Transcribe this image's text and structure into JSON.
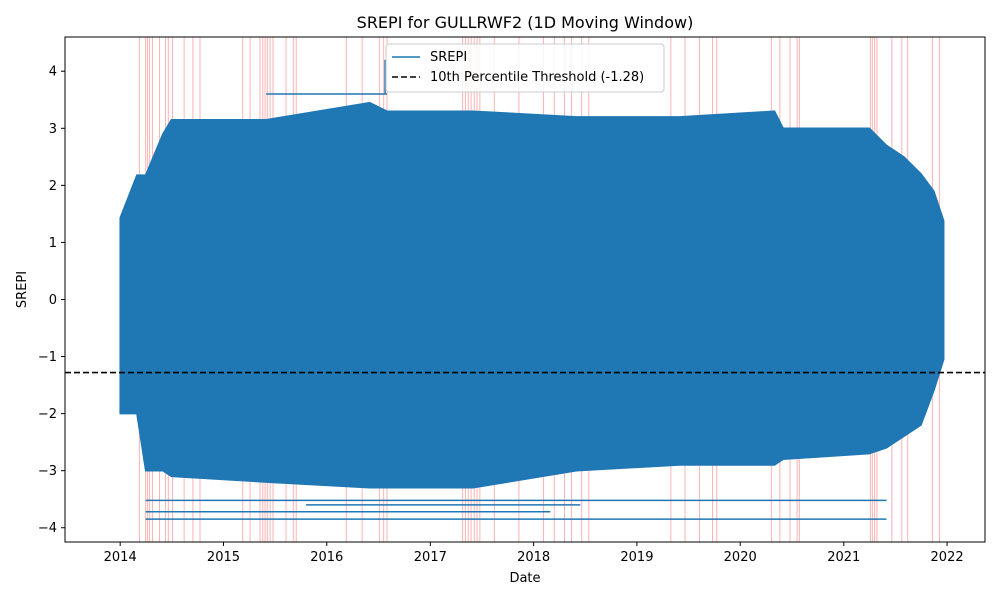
{
  "chart_data": {
    "type": "line",
    "title": "SREPI for GULLRWF2 (1D Moving Window)",
    "xlabel": "Date",
    "ylabel": "SREPI",
    "xlim": [
      "2013-06-20",
      "2022-05-15"
    ],
    "ylim": [
      -4.25,
      4.6
    ],
    "x_ticks": [
      "2014",
      "2015",
      "2016",
      "2017",
      "2018",
      "2019",
      "2020",
      "2021",
      "2022"
    ],
    "y_ticks": [
      -4,
      -3,
      -2,
      -1,
      0,
      1,
      2,
      3,
      4
    ],
    "y_tick_labels": [
      "−4",
      "−3",
      "−2",
      "−1",
      "0",
      "1",
      "2",
      "3",
      "4"
    ],
    "threshold": {
      "value": -1.28,
      "label": "10th Percentile Threshold (-1.28)",
      "color": "#000000",
      "style": "dashed"
    },
    "series": [
      {
        "name": "SREPI",
        "color": "#1f77b4",
        "envelope": [
          {
            "x": "2014-01-01",
            "min": -2.0,
            "max": 1.43
          },
          {
            "x": "2014-03-01",
            "min": -2.0,
            "max": 2.18
          },
          {
            "x": "2014-04-01",
            "min": -3.0,
            "max": 2.18
          },
          {
            "x": "2014-06-01",
            "min": -3.0,
            "max": 2.9
          },
          {
            "x": "2014-07-01",
            "min": -3.1,
            "max": 3.15
          },
          {
            "x": "2015-06-01",
            "min": -3.2,
            "max": 3.15
          },
          {
            "x": "2016-06-01",
            "min": -3.3,
            "max": 3.45
          },
          {
            "x": "2016-08-01",
            "min": -3.3,
            "max": 3.3
          },
          {
            "x": "2017-06-01",
            "min": -3.3,
            "max": 3.3
          },
          {
            "x": "2018-06-01",
            "min": -3.0,
            "max": 3.2
          },
          {
            "x": "2019-06-01",
            "min": -2.9,
            "max": 3.2
          },
          {
            "x": "2020-05-01",
            "min": -2.9,
            "max": 3.3
          },
          {
            "x": "2020-06-01",
            "min": -2.8,
            "max": 3.0
          },
          {
            "x": "2021-04-01",
            "min": -2.7,
            "max": 3.0
          },
          {
            "x": "2021-06-01",
            "min": -2.6,
            "max": 2.7
          },
          {
            "x": "2021-08-01",
            "min": -2.4,
            "max": 2.5
          },
          {
            "x": "2021-10-01",
            "min": -2.2,
            "max": 2.2
          },
          {
            "x": "2021-11-15",
            "min": -1.6,
            "max": 1.9
          },
          {
            "x": "2021-12-20",
            "min": -1.05,
            "max": 1.38
          }
        ],
        "extremes": [
          {
            "x1": "2014-04-01",
            "x2": "2021-06-01",
            "y": -3.85
          },
          {
            "x1": "2014-04-01",
            "x2": "2021-06-01",
            "y": -3.52
          },
          {
            "x1": "2014-04-01",
            "x2": "2018-03-01",
            "y": -3.72
          },
          {
            "x1": "2015-10-20",
            "x2": "2018-06-15",
            "y": -3.6
          },
          {
            "x1": "2015-06-01",
            "x2": "2016-08-01",
            "y": 3.6
          },
          {
            "x1": "2016-07-25",
            "x2": "2016-07-25",
            "y": 4.2
          }
        ]
      }
    ],
    "drought_marks": [
      "2014-03-10",
      "2014-04-01",
      "2014-04-08",
      "2014-04-15",
      "2014-04-25",
      "2014-05-20",
      "2014-06-10",
      "2014-06-20",
      "2014-07-05",
      "2014-08-15",
      "2014-09-15",
      "2014-10-10",
      "2015-03-10",
      "2015-04-05",
      "2015-05-10",
      "2015-05-20",
      "2015-05-28",
      "2015-06-05",
      "2015-06-15",
      "2015-06-25",
      "2015-08-10",
      "2015-09-05",
      "2015-09-15",
      "2016-03-10",
      "2016-05-05",
      "2016-07-05",
      "2016-07-20",
      "2016-08-01",
      "2017-04-25",
      "2017-05-05",
      "2017-05-15",
      "2017-05-25",
      "2017-06-05",
      "2017-06-15",
      "2017-06-25",
      "2017-08-15",
      "2017-11-10",
      "2018-02-05",
      "2018-03-15",
      "2018-04-20",
      "2018-05-15",
      "2018-06-20",
      "2018-07-15",
      "2019-05-01",
      "2019-06-20",
      "2019-08-10",
      "2019-09-25",
      "2019-10-10",
      "2020-04-20",
      "2020-05-20",
      "2020-06-25",
      "2020-07-20",
      "2020-07-28",
      "2021-04-05",
      "2021-04-12",
      "2021-04-20",
      "2021-04-28",
      "2021-06-20",
      "2021-07-25",
      "2021-08-15",
      "2021-11-10",
      "2021-12-05"
    ],
    "drought_mark_color": "#ff0000",
    "legend": {
      "placement": "top-center"
    },
    "grid": false
  }
}
